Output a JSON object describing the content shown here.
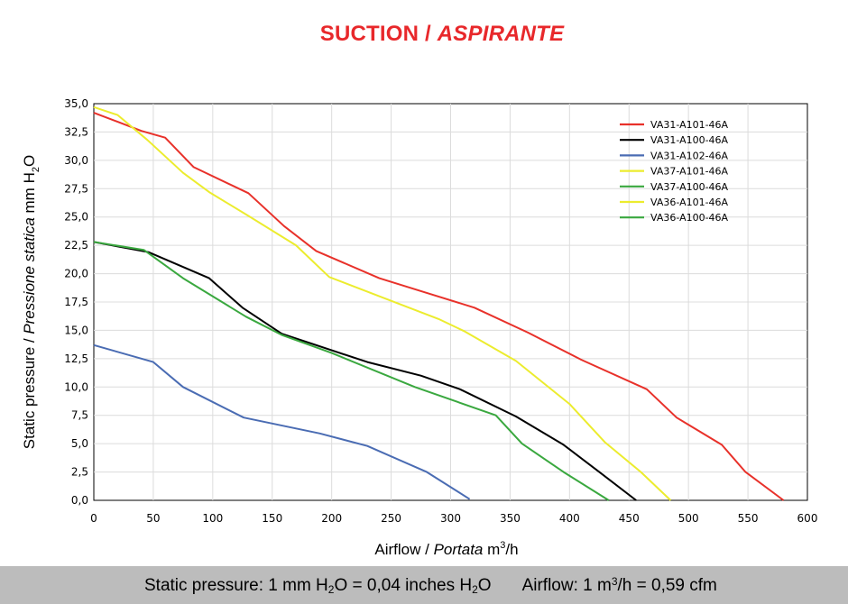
{
  "title": {
    "main": "SUCTION / ",
    "italic": "ASPIRANTE"
  },
  "footer": {
    "pressure_a": "Static pressure: 1 mm H",
    "pressure_sub1": "2",
    "pressure_b": "O = 0,04 inches H",
    "pressure_sub2": "2",
    "pressure_c": "O",
    "airflow_a": "Airflow: 1 m",
    "airflow_sup": "3",
    "airflow_b": "/h = 0,59 cfm"
  },
  "chart_data": {
    "type": "line",
    "xlabel": {
      "main": "Airflow / ",
      "italic": "Portata",
      "unit": " m",
      "unit_sup": "3",
      "unit_end": "/h"
    },
    "ylabel": {
      "main": "Static pressure / ",
      "italic": "Pressione statica",
      "unit": " mm  H",
      "unit_sub": "2",
      "unit_end": "O"
    },
    "xlim": [
      0,
      600
    ],
    "ylim": [
      0,
      35
    ],
    "x_ticks": [
      "0",
      "50",
      "100",
      "150",
      "200",
      "250",
      "300",
      "350",
      "400",
      "450",
      "500",
      "550",
      "600"
    ],
    "y_ticks": [
      "0,0",
      "2,5",
      "5,0",
      "7,5",
      "10,0",
      "12,5",
      "15,0",
      "17,5",
      "20,0",
      "22,5",
      "25,0",
      "27,5",
      "30,0",
      "32,5",
      "35,0"
    ],
    "grid": true,
    "legend_position": "top-right",
    "series": [
      {
        "name": "VA31-A101-46A",
        "color": "#e8312a",
        "points": [
          [
            0,
            34.2
          ],
          [
            20,
            33.4
          ],
          [
            40,
            32.6
          ],
          [
            60,
            32.0
          ],
          [
            84,
            29.4
          ],
          [
            130,
            27.1
          ],
          [
            160,
            24.2
          ],
          [
            187,
            22.0
          ],
          [
            240,
            19.6
          ],
          [
            280,
            18.3
          ],
          [
            320,
            17.0
          ],
          [
            365,
            14.8
          ],
          [
            410,
            12.4
          ],
          [
            465,
            9.8
          ],
          [
            490,
            7.3
          ],
          [
            528,
            4.9
          ],
          [
            548,
            2.5
          ],
          [
            580,
            0.0
          ]
        ]
      },
      {
        "name": "VA31-A100-46A",
        "color": "#000000",
        "points": [
          [
            0,
            22.8
          ],
          [
            46,
            21.9
          ],
          [
            97,
            19.6
          ],
          [
            125,
            17.0
          ],
          [
            158,
            14.7
          ],
          [
            230,
            12.2
          ],
          [
            275,
            11.0
          ],
          [
            308,
            9.8
          ],
          [
            355,
            7.4
          ],
          [
            395,
            4.9
          ],
          [
            425,
            2.5
          ],
          [
            456,
            0.0
          ]
        ]
      },
      {
        "name": "VA31-A102-46A",
        "color": "#4a6cb3",
        "points": [
          [
            0,
            13.7
          ],
          [
            50,
            12.2
          ],
          [
            75,
            10.0
          ],
          [
            126,
            7.3
          ],
          [
            190,
            5.9
          ],
          [
            230,
            4.8
          ],
          [
            280,
            2.5
          ],
          [
            316,
            0.1
          ]
        ]
      },
      {
        "name": "VA37-A101-46A",
        "color": "#ecec2e",
        "points": [
          [
            0,
            34.7
          ],
          [
            20,
            34.0
          ],
          [
            45,
            31.8
          ],
          [
            75,
            28.9
          ],
          [
            97,
            27.2
          ],
          [
            130,
            25.1
          ],
          [
            170,
            22.5
          ],
          [
            198,
            19.7
          ],
          [
            250,
            17.6
          ],
          [
            290,
            16.0
          ],
          [
            312,
            14.9
          ],
          [
            355,
            12.3
          ],
          [
            400,
            8.5
          ],
          [
            430,
            5.1
          ],
          [
            460,
            2.5
          ],
          [
            485,
            0.0
          ]
        ]
      },
      {
        "name": "VA37-A100-46A",
        "color": "#3aa83f",
        "points": [
          [
            0,
            22.8
          ],
          [
            42,
            22.1
          ],
          [
            75,
            19.6
          ],
          [
            128,
            16.2
          ],
          [
            158,
            14.6
          ],
          [
            200,
            13.0
          ],
          [
            270,
            10.0
          ],
          [
            338,
            7.5
          ],
          [
            360,
            5.0
          ],
          [
            395,
            2.5
          ],
          [
            433,
            0.0
          ]
        ]
      },
      {
        "name": "VA36-A101-46A",
        "color": "#ecec2e",
        "legend_only": true,
        "points": []
      },
      {
        "name": "VA36-A100-46A",
        "color": "#3aa83f",
        "legend_only": true,
        "points": []
      }
    ]
  }
}
